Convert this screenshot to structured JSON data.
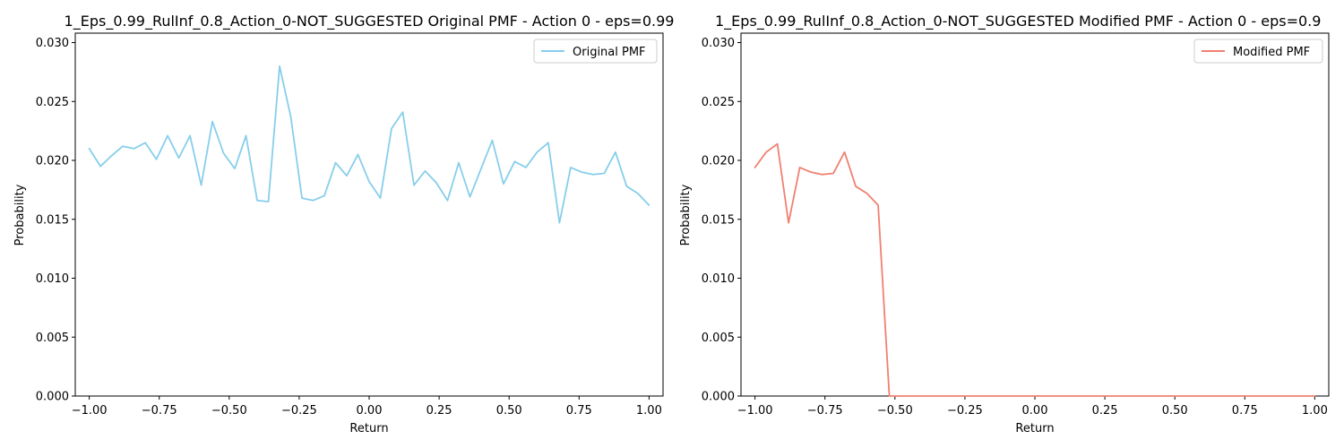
{
  "charts": [
    {
      "title": "1_Eps_0.99_RulInf_0.8_Action_0-NOT_SUGGESTED Original PMF - Action 0 - eps=0.99",
      "xlabel": "Return",
      "ylabel": "Probability",
      "legend": "Original PMF",
      "xticks": [
        "−1.00",
        "−0.75",
        "−0.50",
        "−0.25",
        "0.00",
        "0.25",
        "0.50",
        "0.75",
        "1.00"
      ],
      "yticks": [
        "0.000",
        "0.005",
        "0.010",
        "0.015",
        "0.020",
        "0.025",
        "0.030"
      ]
    },
    {
      "title": "1_Eps_0.99_RulInf_0.8_Action_0-NOT_SUGGESTED Modified PMF - Action 0 - eps=0.9",
      "xlabel": "Return",
      "ylabel": "Probability",
      "legend": "Modified PMF",
      "xticks": [
        "−1.00",
        "−0.75",
        "−0.50",
        "−0.25",
        "0.00",
        "0.25",
        "0.50",
        "0.75",
        "1.00"
      ],
      "yticks": [
        "0.000",
        "0.005",
        "0.010",
        "0.015",
        "0.020",
        "0.025",
        "0.030"
      ]
    }
  ],
  "chart_data": [
    {
      "type": "line",
      "title": "1_Eps_0.99_RulInf_0.8_Action_0-NOT_SUGGESTED Original PMF - Action 0 - eps=0.99",
      "xlabel": "Return",
      "ylabel": "Probability",
      "xlim": [
        -1.05,
        1.05
      ],
      "ylim": [
        0,
        0.0308
      ],
      "legend_position": "top-right",
      "grid": false,
      "series": [
        {
          "name": "Original PMF",
          "color": "#87ceeb",
          "x": [
            -1.0,
            -0.96,
            -0.92,
            -0.88,
            -0.84,
            -0.8,
            -0.76,
            -0.72,
            -0.68,
            -0.64,
            -0.6,
            -0.56,
            -0.52,
            -0.48,
            -0.44,
            -0.4,
            -0.36,
            -0.32,
            -0.28,
            -0.24,
            -0.2,
            -0.16,
            -0.12,
            -0.08,
            -0.04,
            0.0,
            0.04,
            0.08,
            0.12,
            0.16,
            0.2,
            0.24,
            0.28,
            0.32,
            0.36,
            0.4,
            0.44,
            0.48,
            0.52,
            0.56,
            0.6,
            0.64,
            0.68,
            0.72,
            0.76,
            0.8,
            0.84,
            0.88,
            0.92,
            0.96,
            1.0
          ],
          "y": [
            0.021,
            0.0195,
            0.0204,
            0.0212,
            0.021,
            0.0215,
            0.0201,
            0.0221,
            0.0202,
            0.0221,
            0.0179,
            0.0233,
            0.0206,
            0.0193,
            0.0221,
            0.0166,
            0.0165,
            0.028,
            0.0237,
            0.0168,
            0.0166,
            0.017,
            0.0198,
            0.0187,
            0.0205,
            0.0182,
            0.0168,
            0.0227,
            0.0241,
            0.0179,
            0.0191,
            0.0181,
            0.0166,
            0.0198,
            0.0169,
            0.0193,
            0.0217,
            0.018,
            0.0199,
            0.0194,
            0.0207,
            0.0215,
            0.0147,
            0.0194,
            0.019,
            0.0188,
            0.0189,
            0.0207,
            0.0178,
            0.0172,
            0.0162
          ]
        }
      ]
    },
    {
      "type": "line",
      "title": "1_Eps_0.99_RulInf_0.8_Action_0-NOT_SUGGESTED Modified PMF - Action 0 - eps=0.9",
      "xlabel": "Return",
      "ylabel": "Probability",
      "xlim": [
        -1.05,
        1.05
      ],
      "ylim": [
        0,
        0.0308
      ],
      "legend_position": "top-right",
      "grid": false,
      "series": [
        {
          "name": "Modified PMF",
          "color": "#f08070",
          "x": [
            -1.0,
            -0.96,
            -0.92,
            -0.88,
            -0.84,
            -0.8,
            -0.76,
            -0.72,
            -0.68,
            -0.64,
            -0.6,
            -0.56,
            -0.52,
            -0.48,
            -0.44,
            -0.4,
            -0.36,
            -0.32,
            -0.28,
            -0.24,
            -0.2,
            -0.16,
            -0.12,
            -0.08,
            -0.04,
            0.0,
            0.04,
            0.08,
            0.12,
            0.16,
            0.2,
            0.24,
            0.28,
            0.32,
            0.36,
            0.4,
            0.44,
            0.48,
            0.52,
            0.56,
            0.6,
            0.64,
            0.68,
            0.72,
            0.76,
            0.8,
            0.84,
            0.88,
            0.92,
            0.96,
            1.0
          ],
          "y": [
            0.0194,
            0.0207,
            0.0214,
            0.0147,
            0.0194,
            0.019,
            0.0188,
            0.0189,
            0.0207,
            0.0178,
            0.0172,
            0.0162,
            0.0,
            0.0,
            0.0,
            0.0,
            0.0,
            0.0,
            0.0,
            0.0,
            0.0,
            0.0,
            0.0,
            0.0,
            0.0,
            0.0,
            0.0,
            0.0,
            0.0,
            0.0,
            0.0,
            0.0,
            0.0,
            0.0,
            0.0,
            0.0,
            0.0,
            0.0,
            0.0,
            0.0,
            0.0,
            0.0,
            0.0,
            0.0,
            0.0,
            0.0,
            0.0,
            0.0,
            0.0,
            0.0,
            0.0
          ]
        }
      ]
    }
  ]
}
